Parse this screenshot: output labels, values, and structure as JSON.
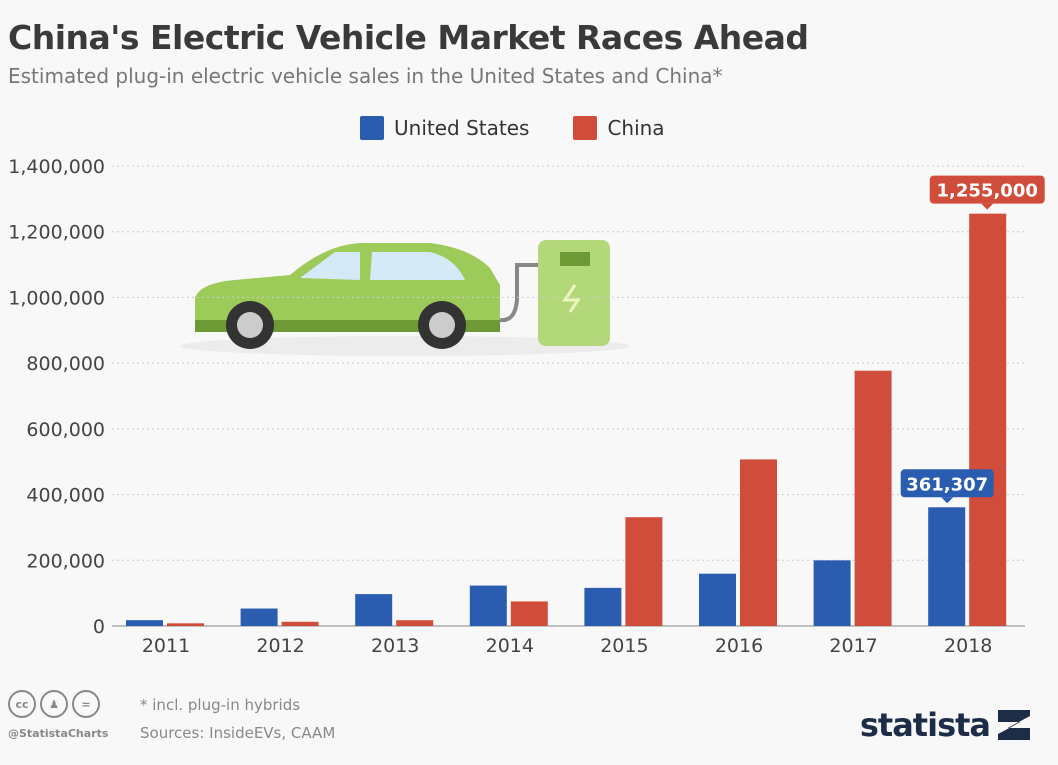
{
  "header": {
    "title": "China's Electric Vehicle Market Races Ahead",
    "subtitle": "Estimated plug-in electric vehicle sales in the United States and China*"
  },
  "chart_data": {
    "type": "bar",
    "title": "China's Electric Vehicle Market Races Ahead",
    "subtitle": "Estimated plug-in electric vehicle sales in the United States and China*",
    "categories": [
      "2011",
      "2012",
      "2013",
      "2014",
      "2015",
      "2016",
      "2017",
      "2018"
    ],
    "series": [
      {
        "name": "United States",
        "color": "#2a5cb0",
        "values": [
          17763,
          53171,
          97102,
          123049,
          116099,
          159139,
          199826,
          361307
        ]
      },
      {
        "name": "China",
        "color": "#d14d3b",
        "values": [
          8159,
          12791,
          17642,
          74763,
          331092,
          507000,
          777000,
          1255000
        ]
      }
    ],
    "data_labels": [
      {
        "series": "United States",
        "category": "2018",
        "text": "361,307"
      },
      {
        "series": "China",
        "category": "2018",
        "text": "1,255,000"
      }
    ],
    "yticks": [
      "0",
      "200,000",
      "400,000",
      "600,000",
      "800,000",
      "1,000,000",
      "1,200,000",
      "1,400,000"
    ],
    "ylim": [
      0,
      1400000
    ],
    "grid": true,
    "legend": "top-center"
  },
  "footer": {
    "note": "* incl. plug-in hybrids",
    "sources": "Sources: InsideEVs, CAAM",
    "handle": "@StatistaCharts",
    "logo": "statista",
    "cc_icons": [
      "cc",
      "by",
      "nd"
    ]
  }
}
